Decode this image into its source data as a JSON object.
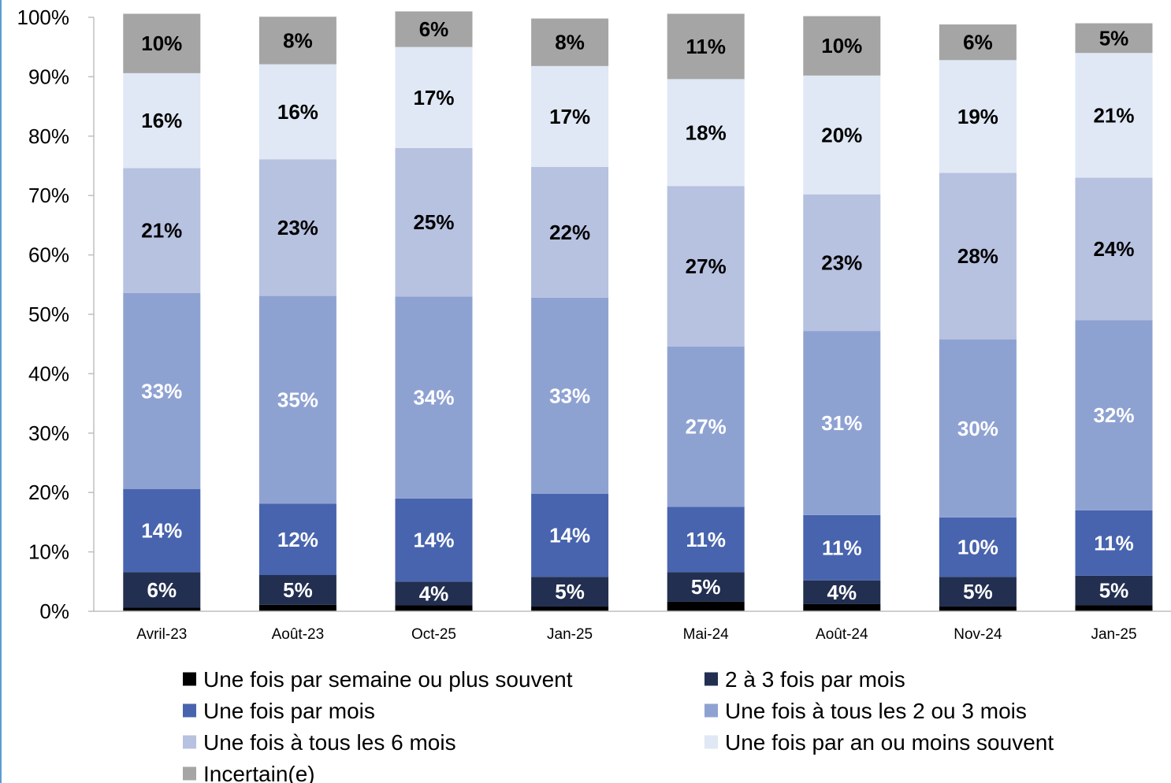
{
  "chart_data": {
    "type": "bar",
    "stacked": true,
    "title": "",
    "xlabel": "",
    "ylabel": "",
    "ylim": [
      0,
      100
    ],
    "y_ticks": [
      "0%",
      "10%",
      "20%",
      "30%",
      "40%",
      "50%",
      "60%",
      "70%",
      "80%",
      "90%",
      "100%"
    ],
    "categories": [
      "Avril-23",
      "Août-23",
      "Oct-25",
      "Jan-25",
      "Mai-24",
      "Août-24",
      "Nov-24",
      "Jan-25"
    ],
    "grid": false,
    "legend_position": "bottom",
    "series": [
      {
        "name": "Une fois par semaine ou plus souvent",
        "color": "#000000",
        "label_color": "#ffffff",
        "values": [
          0.6,
          1.1,
          1.0,
          0.8,
          1.6,
          1.2,
          0.8,
          1.0
        ],
        "labels": [
          "",
          "",
          "",
          "",
          "",
          "",
          "",
          ""
        ]
      },
      {
        "name": "2 à 3 fois par mois",
        "color": "#222f50",
        "label_color": "#ffffff",
        "values": [
          6,
          5,
          4,
          5,
          5,
          4,
          5,
          5
        ],
        "labels": [
          "6%",
          "5%",
          "4%",
          "5%",
          "5%",
          "4%",
          "5%",
          "5%"
        ]
      },
      {
        "name": "Une fois par mois",
        "color": "#4864ae",
        "label_color": "#ffffff",
        "values": [
          14,
          12,
          14,
          14,
          11,
          11,
          10,
          11
        ],
        "labels": [
          "14%",
          "12%",
          "14%",
          "14%",
          "11%",
          "11%",
          "10%",
          "11%"
        ]
      },
      {
        "name": "Une fois à tous les 2 ou 3 mois",
        "color": "#8ea2d2",
        "label_color": "#ffffff",
        "values": [
          33,
          35,
          34,
          33,
          27,
          31,
          30,
          32
        ],
        "labels": [
          "33%",
          "35%",
          "34%",
          "33%",
          "27%",
          "31%",
          "30%",
          "32%"
        ]
      },
      {
        "name": "Une fois à tous les 6 mois",
        "color": "#b7c1e0",
        "label_color": "#000000",
        "values": [
          21,
          23,
          25,
          22,
          27,
          23,
          28,
          24
        ],
        "labels": [
          "21%",
          "23%",
          "25%",
          "22%",
          "27%",
          "23%",
          "28%",
          "24%"
        ]
      },
      {
        "name": "Une fois par an ou moins souvent",
        "color": "#dfe8f4",
        "label_color": "#000000",
        "values": [
          16,
          16,
          17,
          17,
          18,
          20,
          19,
          21
        ],
        "labels": [
          "16%",
          "16%",
          "17%",
          "17%",
          "18%",
          "20%",
          "19%",
          "21%"
        ]
      },
      {
        "name": "Incertain(e)",
        "color": "#a5a5a5",
        "label_color": "#000000",
        "values": [
          10,
          8,
          6,
          8,
          11,
          10,
          6,
          5
        ],
        "labels": [
          "10%",
          "8%",
          "6%",
          "8%",
          "11%",
          "10%",
          "6%",
          "5%"
        ]
      }
    ]
  }
}
